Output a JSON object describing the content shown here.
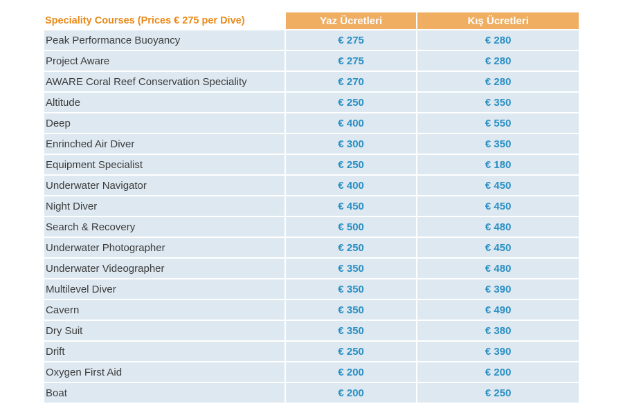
{
  "table": {
    "header": {
      "course": "Speciality Courses (Prices € 275 per Dive)",
      "summer": "Yaz Ücretleri",
      "winter": "Kış Ücretleri"
    },
    "rows": [
      {
        "course": "Peak Performance Buoyancy",
        "summer": "€ 275",
        "winter": "€ 280"
      },
      {
        "course": "Project Aware",
        "summer": "€ 275",
        "winter": "€ 280"
      },
      {
        "course": "AWARE Coral Reef Conservation Speciality",
        "summer": "€ 270",
        "winter": "€ 280"
      },
      {
        "course": "Altitude",
        "summer": "€ 250",
        "winter": "€ 350"
      },
      {
        "course": "Deep",
        "summer": "€ 400",
        "winter": "€ 550"
      },
      {
        "course": "Enrinched Air Diver",
        "summer": "€ 300",
        "winter": "€ 350"
      },
      {
        "course": "Equipment Specialist",
        "summer": "€ 250",
        "winter": "€ 180"
      },
      {
        "course": "Underwater Navigator",
        "summer": "€ 400",
        "winter": "€ 450"
      },
      {
        "course": "Night Diver",
        "summer": "€ 450",
        "winter": "€ 450"
      },
      {
        "course": "Search & Recovery",
        "summer": "€ 500",
        "winter": "€ 480"
      },
      {
        "course": "Underwater Photographer",
        "summer": "€ 250",
        "winter": "€ 450"
      },
      {
        "course": "Underwater Videographer",
        "summer": "€ 350",
        "winter": "€ 480"
      },
      {
        "course": "Multilevel Diver",
        "summer": "€ 350",
        "winter": "€ 390"
      },
      {
        "course": "Cavern",
        "summer": "€ 350",
        "winter": "€ 490"
      },
      {
        "course": "Dry Suit",
        "summer": "€ 350",
        "winter": "€ 380"
      },
      {
        "course": "Drift",
        "summer": "€ 250",
        "winter": "€ 390"
      },
      {
        "course": "Oxygen First Aid",
        "summer": "€ 200",
        "winter": "€ 200"
      },
      {
        "course": "Boat",
        "summer": "€ 200",
        "winter": "€ 250"
      }
    ]
  },
  "colors": {
    "header_accent": "#efae62",
    "course_title": "#e88a1a",
    "price_text": "#2a8fc4",
    "row_background": "#dde8f0"
  }
}
